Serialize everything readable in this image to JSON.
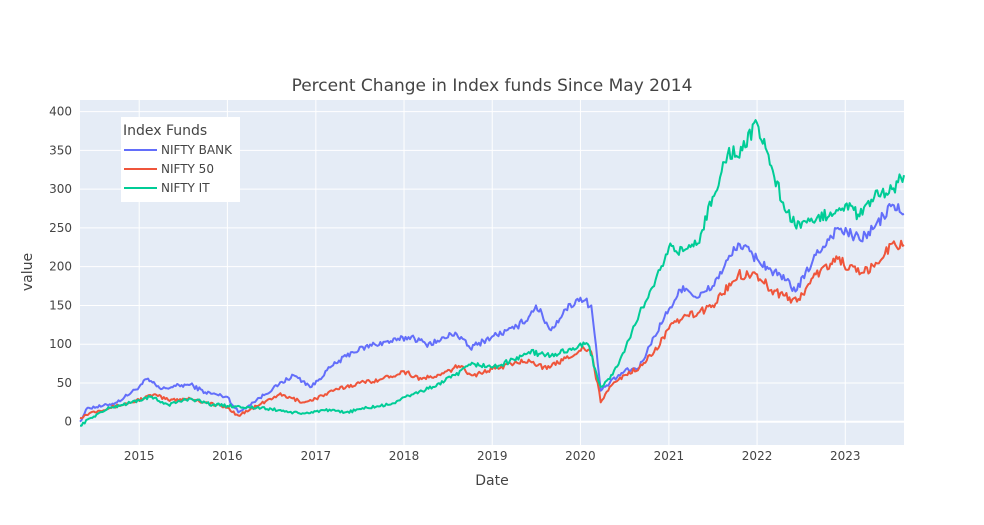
{
  "chart_data": {
    "type": "line",
    "title": "Percent Change in Index funds Since May 2014",
    "xlabel": "Date",
    "ylabel": "value",
    "x_range": [
      "2014-05-01",
      "2023-09-01"
    ],
    "ylim": [
      -30,
      415
    ],
    "x_ticks": [
      "2015",
      "2016",
      "2017",
      "2018",
      "2019",
      "2020",
      "2021",
      "2022",
      "2023"
    ],
    "y_ticks": [
      0,
      50,
      100,
      150,
      200,
      250,
      300,
      350,
      400
    ],
    "grid": true,
    "legend": {
      "title": "Index Funds",
      "position": "top-left"
    },
    "series": [
      {
        "name": "NIFTY BANK",
        "color": "#636efa",
        "points": [
          [
            "2014-05-01",
            0
          ],
          [
            "2014-06-01",
            18
          ],
          [
            "2014-08-01",
            20
          ],
          [
            "2014-10-01",
            25
          ],
          [
            "2015-01-01",
            45
          ],
          [
            "2015-02-01",
            55
          ],
          [
            "2015-04-01",
            42
          ],
          [
            "2015-06-01",
            46
          ],
          [
            "2015-08-01",
            48
          ],
          [
            "2015-10-01",
            38
          ],
          [
            "2016-01-01",
            32
          ],
          [
            "2016-02-15",
            12
          ],
          [
            "2016-05-01",
            28
          ],
          [
            "2016-08-01",
            48
          ],
          [
            "2016-10-01",
            60
          ],
          [
            "2016-12-15",
            45
          ],
          [
            "2017-03-01",
            70
          ],
          [
            "2017-06-01",
            90
          ],
          [
            "2017-09-01",
            100
          ],
          [
            "2017-12-01",
            105
          ],
          [
            "2018-02-01",
            110
          ],
          [
            "2018-04-01",
            100
          ],
          [
            "2018-06-01",
            105
          ],
          [
            "2018-08-01",
            115
          ],
          [
            "2018-10-01",
            95
          ],
          [
            "2019-01-01",
            110
          ],
          [
            "2019-04-01",
            120
          ],
          [
            "2019-06-01",
            135
          ],
          [
            "2019-07-01",
            150
          ],
          [
            "2019-09-01",
            118
          ],
          [
            "2019-11-01",
            145
          ],
          [
            "2020-01-01",
            160
          ],
          [
            "2020-02-15",
            150
          ],
          [
            "2020-03-25",
            40
          ],
          [
            "2020-05-01",
            50
          ],
          [
            "2020-07-01",
            65
          ],
          [
            "2020-09-01",
            70
          ],
          [
            "2020-11-01",
            110
          ],
          [
            "2021-01-01",
            145
          ],
          [
            "2021-03-01",
            175
          ],
          [
            "2021-05-01",
            160
          ],
          [
            "2021-07-01",
            175
          ],
          [
            "2021-10-15",
            230
          ],
          [
            "2022-01-01",
            210
          ],
          [
            "2022-03-01",
            195
          ],
          [
            "2022-06-15",
            170
          ],
          [
            "2022-09-01",
            215
          ],
          [
            "2022-12-01",
            250
          ],
          [
            "2023-03-01",
            235
          ],
          [
            "2023-05-01",
            250
          ],
          [
            "2023-07-15",
            280
          ],
          [
            "2023-09-01",
            268
          ]
        ]
      },
      {
        "name": "NIFTY 50",
        "color": "#ef553b",
        "points": [
          [
            "2014-05-01",
            5
          ],
          [
            "2014-06-15",
            12
          ],
          [
            "2014-09-01",
            18
          ],
          [
            "2014-12-01",
            25
          ],
          [
            "2015-03-01",
            35
          ],
          [
            "2015-05-01",
            28
          ],
          [
            "2015-08-01",
            30
          ],
          [
            "2015-10-01",
            25
          ],
          [
            "2016-01-01",
            18
          ],
          [
            "2016-02-15",
            8
          ],
          [
            "2016-05-01",
            20
          ],
          [
            "2016-08-01",
            35
          ],
          [
            "2016-11-15",
            25
          ],
          [
            "2017-01-01",
            30
          ],
          [
            "2017-04-01",
            42
          ],
          [
            "2017-07-01",
            50
          ],
          [
            "2017-10-01",
            55
          ],
          [
            "2018-01-01",
            65
          ],
          [
            "2018-03-15",
            55
          ],
          [
            "2018-06-01",
            60
          ],
          [
            "2018-08-15",
            72
          ],
          [
            "2018-10-15",
            60
          ],
          [
            "2019-01-01",
            68
          ],
          [
            "2019-04-01",
            75
          ],
          [
            "2019-06-01",
            80
          ],
          [
            "2019-08-15",
            68
          ],
          [
            "2019-11-01",
            82
          ],
          [
            "2020-01-15",
            95
          ],
          [
            "2020-02-15",
            90
          ],
          [
            "2020-03-25",
            25
          ],
          [
            "2020-05-01",
            45
          ],
          [
            "2020-07-01",
            60
          ],
          [
            "2020-09-01",
            70
          ],
          [
            "2020-11-01",
            90
          ],
          [
            "2021-01-01",
            120
          ],
          [
            "2021-03-01",
            135
          ],
          [
            "2021-05-01",
            140
          ],
          [
            "2021-07-01",
            150
          ],
          [
            "2021-10-15",
            190
          ],
          [
            "2022-01-01",
            190
          ],
          [
            "2022-03-01",
            170
          ],
          [
            "2022-06-15",
            155
          ],
          [
            "2022-09-01",
            190
          ],
          [
            "2022-12-01",
            210
          ],
          [
            "2023-03-01",
            190
          ],
          [
            "2023-05-01",
            200
          ],
          [
            "2023-07-15",
            230
          ],
          [
            "2023-09-01",
            228
          ]
        ]
      },
      {
        "name": "NIFTY IT",
        "color": "#00cc96",
        "points": [
          [
            "2014-05-01",
            -5
          ],
          [
            "2014-06-15",
            5
          ],
          [
            "2014-09-01",
            18
          ],
          [
            "2014-12-01",
            25
          ],
          [
            "2015-02-15",
            32
          ],
          [
            "2015-05-01",
            22
          ],
          [
            "2015-08-01",
            30
          ],
          [
            "2015-11-01",
            22
          ],
          [
            "2016-02-01",
            20
          ],
          [
            "2016-05-01",
            18
          ],
          [
            "2016-08-01",
            15
          ],
          [
            "2016-11-01",
            10
          ],
          [
            "2017-02-01",
            15
          ],
          [
            "2017-05-01",
            12
          ],
          [
            "2017-08-01",
            18
          ],
          [
            "2017-11-01",
            22
          ],
          [
            "2018-02-01",
            35
          ],
          [
            "2018-05-01",
            45
          ],
          [
            "2018-08-01",
            60
          ],
          [
            "2018-10-15",
            75
          ],
          [
            "2019-01-01",
            70
          ],
          [
            "2019-04-01",
            80
          ],
          [
            "2019-06-01",
            90
          ],
          [
            "2019-09-01",
            85
          ],
          [
            "2019-12-01",
            95
          ],
          [
            "2020-02-01",
            100
          ],
          [
            "2020-03-25",
            45
          ],
          [
            "2020-05-01",
            55
          ],
          [
            "2020-07-01",
            90
          ],
          [
            "2020-09-01",
            140
          ],
          [
            "2020-11-01",
            175
          ],
          [
            "2021-01-01",
            225
          ],
          [
            "2021-03-01",
            220
          ],
          [
            "2021-05-01",
            230
          ],
          [
            "2021-07-01",
            290
          ],
          [
            "2021-09-01",
            345
          ],
          [
            "2021-11-01",
            350
          ],
          [
            "2022-01-01",
            385
          ],
          [
            "2022-03-01",
            330
          ],
          [
            "2022-05-01",
            270
          ],
          [
            "2022-07-01",
            250
          ],
          [
            "2022-09-01",
            260
          ],
          [
            "2022-11-01",
            270
          ],
          [
            "2023-01-01",
            280
          ],
          [
            "2023-03-01",
            265
          ],
          [
            "2023-05-01",
            290
          ],
          [
            "2023-07-01",
            295
          ],
          [
            "2023-09-01",
            318
          ]
        ]
      }
    ]
  }
}
